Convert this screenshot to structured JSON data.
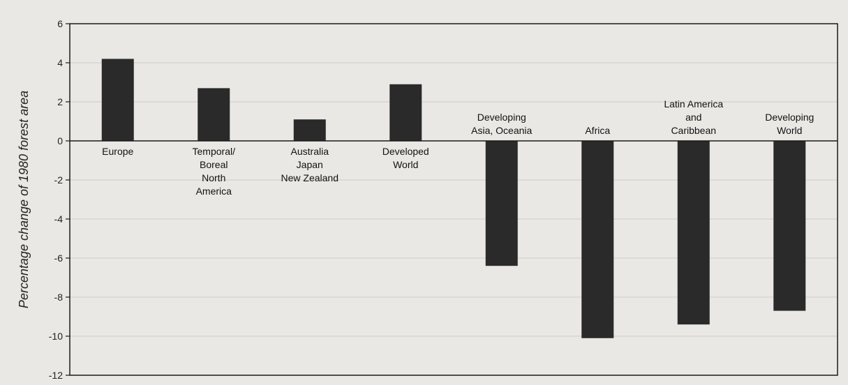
{
  "chart_data": {
    "type": "bar",
    "title": "",
    "xlabel": "",
    "ylabel": "Percentage change of 1980 forest area",
    "ylim": [
      -12,
      6
    ],
    "yticks": [
      6,
      4,
      2,
      0,
      -2,
      -4,
      -6,
      -8,
      -10,
      -12
    ],
    "grid": true,
    "categories": [
      "Europe",
      "Temporal/ Boreal North America",
      "Australia Japan New Zealand",
      "Developed World",
      "Developing Asia, Oceania",
      "Africa",
      "Latin America and Caribbean",
      "Developing World"
    ],
    "category_label_lines": [
      [
        "Europe"
      ],
      [
        "Temporal/",
        "Boreal",
        "North",
        "America"
      ],
      [
        "Australia",
        "Japan",
        "New Zealand"
      ],
      [
        "Developed",
        "World"
      ],
      [
        "Developing",
        "Asia, Oceania"
      ],
      [
        "Africa"
      ],
      [
        "Latin America",
        "and",
        "Caribbean"
      ],
      [
        "Developing",
        "World"
      ]
    ],
    "values": [
      4.2,
      2.7,
      1.1,
      2.9,
      -6.4,
      -10.1,
      -9.4,
      -8.7
    ],
    "bar_color": "#2a2a2a"
  }
}
